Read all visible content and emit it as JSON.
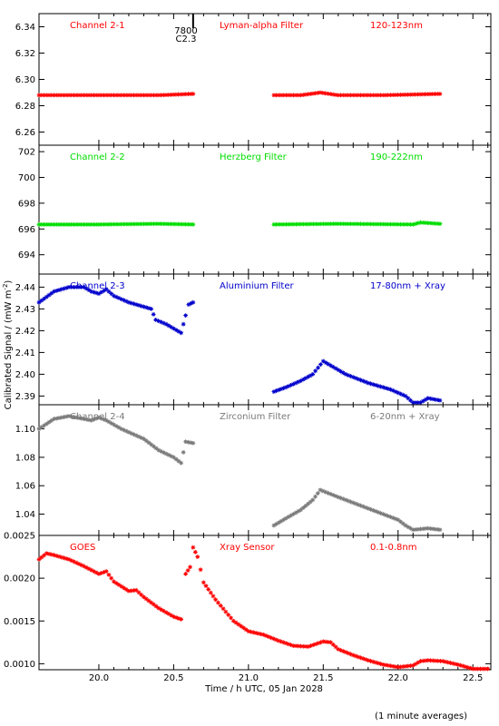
{
  "figure": {
    "ylabel": "Calibrated Signal / (mW m",
    "ylabel_sup": "-2",
    "ylabel_close": ")",
    "xlabel": "Time / h UTC, 05 Jan 2028",
    "footnote": "(1 minute averages)",
    "marker_label_top": "7800",
    "marker_label_bottom": "C2.3",
    "marker_time": 20.63,
    "colors": {
      "red": "#ff0000",
      "green": "#00dd00",
      "blue": "#0000cc",
      "gray": "#7a7a7a",
      "axis": "#000000"
    }
  },
  "chart_data": [
    {
      "type": "scatter",
      "name_left": "Channel 2-1",
      "name_mid": "Lyman-alpha Filter",
      "name_right": "120-123nm",
      "color": "#ff0000",
      "xlim": [
        19.6,
        22.62
      ],
      "ylim": [
        6.25,
        6.35
      ],
      "yticks": [
        6.26,
        6.28,
        6.3,
        6.32,
        6.34
      ],
      "ytick_labels": [
        "6.26",
        "6.28",
        "6.30",
        "6.32",
        "6.34"
      ],
      "segments": [
        [
          [
            19.6,
            6.288
          ],
          [
            19.9,
            6.288
          ],
          [
            20.2,
            6.288
          ],
          [
            20.4,
            6.288
          ],
          [
            20.63,
            6.289
          ]
        ],
        [
          [
            21.17,
            6.288
          ],
          [
            21.35,
            6.288
          ],
          [
            21.48,
            6.29
          ],
          [
            21.6,
            6.288
          ],
          [
            21.9,
            6.288
          ],
          [
            22.28,
            6.289
          ]
        ]
      ]
    },
    {
      "type": "scatter",
      "name_left": "Channel 2-2",
      "name_mid": "Herzberg Filter",
      "name_right": "190-222nm",
      "color": "#00dd00",
      "xlim": [
        19.6,
        22.62
      ],
      "ylim": [
        692.5,
        702.5
      ],
      "yticks": [
        694,
        696,
        698,
        700,
        702
      ],
      "ytick_labels": [
        "694",
        "696",
        "698",
        "700",
        "702"
      ],
      "segments": [
        [
          [
            19.6,
            696.35
          ],
          [
            20.0,
            696.35
          ],
          [
            20.4,
            696.4
          ],
          [
            20.63,
            696.35
          ]
        ],
        [
          [
            21.17,
            696.35
          ],
          [
            21.6,
            696.4
          ],
          [
            22.1,
            696.35
          ],
          [
            22.15,
            696.5
          ],
          [
            22.28,
            696.4
          ]
        ]
      ]
    },
    {
      "type": "scatter",
      "name_left": "Channel 2-3",
      "name_mid": "Aluminium Filter",
      "name_right": "17-80nm + Xray",
      "color": "#0000cc",
      "xlim": [
        19.6,
        22.62
      ],
      "ylim": [
        2.386,
        2.446
      ],
      "yticks": [
        2.39,
        2.4,
        2.41,
        2.42,
        2.43,
        2.44
      ],
      "ytick_labels": [
        "2.39",
        "2.40",
        "2.41",
        "2.42",
        "2.43",
        "2.44"
      ],
      "segments": [
        [
          [
            19.6,
            2.433
          ],
          [
            19.7,
            2.438
          ],
          [
            19.8,
            2.44
          ],
          [
            19.9,
            2.44
          ],
          [
            19.95,
            2.438
          ],
          [
            20.0,
            2.437
          ],
          [
            20.05,
            2.439
          ],
          [
            20.1,
            2.436
          ],
          [
            20.2,
            2.433
          ],
          [
            20.3,
            2.431
          ],
          [
            20.35,
            2.43
          ],
          [
            20.38,
            2.425
          ],
          [
            20.45,
            2.423
          ],
          [
            20.5,
            2.421
          ],
          [
            20.55,
            2.419
          ],
          [
            20.58,
            2.427
          ],
          [
            20.6,
            2.432
          ],
          [
            20.63,
            2.433
          ]
        ],
        [
          [
            21.17,
            2.392
          ],
          [
            21.25,
            2.394
          ],
          [
            21.35,
            2.397
          ],
          [
            21.43,
            2.4
          ],
          [
            21.5,
            2.406
          ],
          [
            21.55,
            2.404
          ],
          [
            21.65,
            2.4
          ],
          [
            21.8,
            2.396
          ],
          [
            21.95,
            2.393
          ],
          [
            22.05,
            2.39
          ],
          [
            22.1,
            2.387
          ],
          [
            22.15,
            2.387
          ],
          [
            22.2,
            2.389
          ],
          [
            22.28,
            2.388
          ]
        ]
      ]
    },
    {
      "type": "scatter",
      "name_left": "Channel 2-4",
      "name_mid": "Zirconium Filter",
      "name_right": "6-20nm + Xray",
      "color": "#7a7a7a",
      "xlim": [
        19.6,
        22.62
      ],
      "ylim": [
        1.025,
        1.117
      ],
      "yticks": [
        1.04,
        1.06,
        1.08,
        1.1
      ],
      "ytick_labels": [
        "1.04",
        "1.06",
        "1.08",
        "1.10"
      ],
      "segments": [
        [
          [
            19.6,
            1.1
          ],
          [
            19.7,
            1.107
          ],
          [
            19.8,
            1.109
          ],
          [
            19.9,
            1.107
          ],
          [
            19.95,
            1.106
          ],
          [
            20.0,
            1.108
          ],
          [
            20.05,
            1.106
          ],
          [
            20.15,
            1.1
          ],
          [
            20.3,
            1.093
          ],
          [
            20.4,
            1.085
          ],
          [
            20.5,
            1.08
          ],
          [
            20.55,
            1.076
          ],
          [
            20.58,
            1.091
          ],
          [
            20.63,
            1.09
          ]
        ],
        [
          [
            21.17,
            1.032
          ],
          [
            21.25,
            1.037
          ],
          [
            21.35,
            1.043
          ],
          [
            21.43,
            1.05
          ],
          [
            21.48,
            1.057
          ],
          [
            21.6,
            1.052
          ],
          [
            21.75,
            1.046
          ],
          [
            21.9,
            1.04
          ],
          [
            22.0,
            1.036
          ],
          [
            22.05,
            1.032
          ],
          [
            22.1,
            1.029
          ],
          [
            22.2,
            1.03
          ],
          [
            22.28,
            1.029
          ]
        ]
      ]
    },
    {
      "type": "scatter",
      "name_left": "GOES",
      "name_mid": "Xray Sensor",
      "name_right": "0.1-0.8nm",
      "color": "#ff0000",
      "xlim": [
        19.6,
        22.62
      ],
      "ylim": [
        0.00093,
        0.0025
      ],
      "yticks": [
        0.001,
        0.0015,
        0.002,
        0.0025
      ],
      "ytick_labels": [
        "0.0010",
        "0.0015",
        "0.0020",
        "0.0025"
      ],
      "xticks": [
        20.0,
        20.5,
        21.0,
        21.5,
        22.0,
        22.5
      ],
      "xtick_labels": [
        "20.0",
        "20.5",
        "21.0",
        "21.5",
        "22.0",
        "22.5"
      ],
      "segments": [
        [
          [
            19.6,
            0.00222
          ],
          [
            19.65,
            0.00229
          ],
          [
            19.7,
            0.00227
          ],
          [
            19.8,
            0.00222
          ],
          [
            19.9,
            0.00214
          ],
          [
            20.0,
            0.00205
          ],
          [
            20.05,
            0.00208
          ],
          [
            20.1,
            0.00196
          ],
          [
            20.2,
            0.00185
          ],
          [
            20.25,
            0.00186
          ],
          [
            20.3,
            0.00178
          ],
          [
            20.4,
            0.00165
          ],
          [
            20.5,
            0.00155
          ],
          [
            20.55,
            0.00152
          ]
        ],
        [
          [
            20.58,
            0.00205
          ],
          [
            20.61,
            0.00213
          ],
          [
            20.63,
            0.00236
          ],
          [
            20.66,
            0.00225
          ],
          [
            20.7,
            0.00195
          ],
          [
            20.78,
            0.00175
          ],
          [
            20.9,
            0.0015
          ],
          [
            21.0,
            0.00138
          ],
          [
            21.1,
            0.00134
          ],
          [
            21.2,
            0.00127
          ],
          [
            21.3,
            0.00121
          ],
          [
            21.4,
            0.0012
          ],
          [
            21.5,
            0.00126
          ],
          [
            21.55,
            0.00125
          ],
          [
            21.6,
            0.00117
          ],
          [
            21.7,
            0.0011
          ],
          [
            21.8,
            0.00104
          ],
          [
            21.9,
            0.00099
          ],
          [
            22.0,
            0.00096
          ],
          [
            22.1,
            0.00098
          ],
          [
            22.15,
            0.00103
          ],
          [
            22.2,
            0.00104
          ],
          [
            22.3,
            0.00103
          ],
          [
            22.4,
            0.00099
          ],
          [
            22.5,
            0.00094
          ],
          [
            22.6,
            0.00094
          ]
        ]
      ]
    }
  ]
}
